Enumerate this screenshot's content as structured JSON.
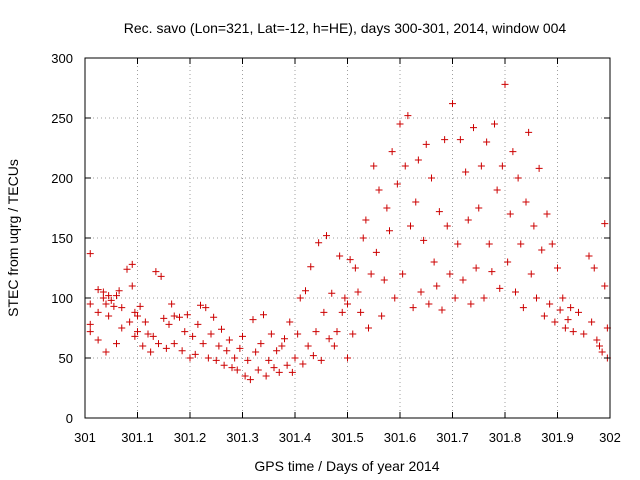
{
  "chart_data": {
    "type": "scatter",
    "title": "Rec. savo (Lon=321, Lat=-12, h=HE), days 300-301, 2014, window 004",
    "xlabel": "GPS time / Days of year 2014",
    "ylabel": "STEC from uqrg / TECUs",
    "xlim": [
      301,
      302
    ],
    "ylim": [
      0,
      300
    ],
    "x_ticks": [
      301,
      301.1,
      301.2,
      301.3,
      301.4,
      301.5,
      301.6,
      301.7,
      301.8,
      301.9,
      302
    ],
    "x_tick_labels": [
      "301",
      "301.1",
      "301.2",
      "301.3",
      "301.4",
      "301.5",
      "301.6",
      "301.7",
      "301.8",
      "301.9",
      "302"
    ],
    "y_ticks": [
      0,
      50,
      100,
      150,
      200,
      250,
      300
    ],
    "y_tick_labels": [
      "0",
      "50",
      "100",
      "150",
      "200",
      "250",
      "300"
    ],
    "grid": true,
    "marker": "plus",
    "color": "#cc0000",
    "points": [
      [
        301.01,
        137
      ],
      [
        301.01,
        95
      ],
      [
        301.01,
        78
      ],
      [
        301.01,
        72
      ],
      [
        301.025,
        107
      ],
      [
        301.025,
        88
      ],
      [
        301.025,
        65
      ],
      [
        301.035,
        105
      ],
      [
        301.035,
        100
      ],
      [
        301.04,
        95
      ],
      [
        301.04,
        55
      ],
      [
        301.045,
        102
      ],
      [
        301.045,
        85
      ],
      [
        301.05,
        98
      ],
      [
        301.055,
        93
      ],
      [
        301.06,
        102
      ],
      [
        301.06,
        62
      ],
      [
        301.065,
        106
      ],
      [
        301.07,
        92
      ],
      [
        301.07,
        75
      ],
      [
        301.08,
        124
      ],
      [
        301.085,
        80
      ],
      [
        301.09,
        128
      ],
      [
        301.09,
        110
      ],
      [
        301.095,
        88
      ],
      [
        301.095,
        68
      ],
      [
        301.1,
        85
      ],
      [
        301.1,
        72
      ],
      [
        301.105,
        93
      ],
      [
        301.11,
        60
      ],
      [
        301.115,
        80
      ],
      [
        301.12,
        70
      ],
      [
        301.125,
        55
      ],
      [
        301.13,
        68
      ],
      [
        301.135,
        122
      ],
      [
        301.14,
        62
      ],
      [
        301.145,
        118
      ],
      [
        301.15,
        83
      ],
      [
        301.155,
        58
      ],
      [
        301.16,
        78
      ],
      [
        301.165,
        95
      ],
      [
        301.17,
        85
      ],
      [
        301.17,
        62
      ],
      [
        301.18,
        84
      ],
      [
        301.185,
        56
      ],
      [
        301.19,
        72
      ],
      [
        301.195,
        86
      ],
      [
        301.2,
        50
      ],
      [
        301.205,
        68
      ],
      [
        301.21,
        53
      ],
      [
        301.215,
        78
      ],
      [
        301.22,
        94
      ],
      [
        301.225,
        62
      ],
      [
        301.23,
        92
      ],
      [
        301.235,
        50
      ],
      [
        301.24,
        70
      ],
      [
        301.245,
        84
      ],
      [
        301.25,
        48
      ],
      [
        301.255,
        60
      ],
      [
        301.26,
        74
      ],
      [
        301.265,
        44
      ],
      [
        301.27,
        56
      ],
      [
        301.275,
        65
      ],
      [
        301.28,
        42
      ],
      [
        301.285,
        50
      ],
      [
        301.29,
        40
      ],
      [
        301.295,
        58
      ],
      [
        301.3,
        68
      ],
      [
        301.305,
        35
      ],
      [
        301.31,
        48
      ],
      [
        301.315,
        32
      ],
      [
        301.32,
        82
      ],
      [
        301.325,
        55
      ],
      [
        301.33,
        40
      ],
      [
        301.335,
        62
      ],
      [
        301.34,
        86
      ],
      [
        301.345,
        35
      ],
      [
        301.35,
        48
      ],
      [
        301.355,
        70
      ],
      [
        301.36,
        42
      ],
      [
        301.365,
        56
      ],
      [
        301.37,
        38
      ],
      [
        301.375,
        60
      ],
      [
        301.38,
        66
      ],
      [
        301.385,
        44
      ],
      [
        301.39,
        80
      ],
      [
        301.395,
        38
      ],
      [
        301.4,
        50
      ],
      [
        301.405,
        70
      ],
      [
        301.41,
        100
      ],
      [
        301.415,
        45
      ],
      [
        301.42,
        106
      ],
      [
        301.425,
        60
      ],
      [
        301.43,
        126
      ],
      [
        301.435,
        52
      ],
      [
        301.44,
        72
      ],
      [
        301.445,
        146
      ],
      [
        301.45,
        48
      ],
      [
        301.455,
        88
      ],
      [
        301.46,
        152
      ],
      [
        301.465,
        66
      ],
      [
        301.47,
        104
      ],
      [
        301.475,
        60
      ],
      [
        301.48,
        72
      ],
      [
        301.485,
        135
      ],
      [
        301.49,
        88
      ],
      [
        301.495,
        100
      ],
      [
        301.5,
        50
      ],
      [
        301.5,
        95
      ],
      [
        301.505,
        132
      ],
      [
        301.51,
        70
      ],
      [
        301.515,
        125
      ],
      [
        301.52,
        105
      ],
      [
        301.525,
        88
      ],
      [
        301.53,
        150
      ],
      [
        301.535,
        165
      ],
      [
        301.54,
        75
      ],
      [
        301.545,
        120
      ],
      [
        301.55,
        210
      ],
      [
        301.555,
        138
      ],
      [
        301.56,
        190
      ],
      [
        301.565,
        85
      ],
      [
        301.57,
        115
      ],
      [
        301.575,
        175
      ],
      [
        301.58,
        156
      ],
      [
        301.585,
        222
      ],
      [
        301.59,
        100
      ],
      [
        301.595,
        195
      ],
      [
        301.6,
        245
      ],
      [
        301.605,
        120
      ],
      [
        301.61,
        210
      ],
      [
        301.615,
        252
      ],
      [
        301.62,
        160
      ],
      [
        301.625,
        92
      ],
      [
        301.63,
        180
      ],
      [
        301.635,
        215
      ],
      [
        301.64,
        105
      ],
      [
        301.645,
        148
      ],
      [
        301.65,
        228
      ],
      [
        301.655,
        95
      ],
      [
        301.66,
        200
      ],
      [
        301.665,
        130
      ],
      [
        301.67,
        110
      ],
      [
        301.675,
        172
      ],
      [
        301.68,
        90
      ],
      [
        301.685,
        232
      ],
      [
        301.69,
        160
      ],
      [
        301.695,
        120
      ],
      [
        301.7,
        262
      ],
      [
        301.705,
        100
      ],
      [
        301.71,
        145
      ],
      [
        301.715,
        232
      ],
      [
        301.72,
        115
      ],
      [
        301.725,
        205
      ],
      [
        301.73,
        165
      ],
      [
        301.735,
        95
      ],
      [
        301.74,
        242
      ],
      [
        301.745,
        125
      ],
      [
        301.75,
        175
      ],
      [
        301.755,
        210
      ],
      [
        301.76,
        100
      ],
      [
        301.765,
        230
      ],
      [
        301.77,
        145
      ],
      [
        301.775,
        122
      ],
      [
        301.78,
        245
      ],
      [
        301.785,
        190
      ],
      [
        301.79,
        108
      ],
      [
        301.795,
        210
      ],
      [
        301.8,
        278
      ],
      [
        301.805,
        130
      ],
      [
        301.81,
        170
      ],
      [
        301.815,
        222
      ],
      [
        301.82,
        105
      ],
      [
        301.825,
        200
      ],
      [
        301.83,
        145
      ],
      [
        301.835,
        92
      ],
      [
        301.84,
        180
      ],
      [
        301.845,
        238
      ],
      [
        301.85,
        120
      ],
      [
        301.855,
        160
      ],
      [
        301.86,
        100
      ],
      [
        301.865,
        208
      ],
      [
        301.87,
        140
      ],
      [
        301.875,
        85
      ],
      [
        301.88,
        170
      ],
      [
        301.885,
        95
      ],
      [
        301.89,
        145
      ],
      [
        301.895,
        80
      ],
      [
        301.9,
        125
      ],
      [
        301.905,
        90
      ],
      [
        301.91,
        100
      ],
      [
        301.915,
        75
      ],
      [
        301.92,
        82
      ],
      [
        301.925,
        92
      ],
      [
        301.93,
        72
      ],
      [
        301.94,
        88
      ],
      [
        301.95,
        70
      ],
      [
        301.96,
        135
      ],
      [
        301.965,
        80
      ],
      [
        301.97,
        125
      ],
      [
        301.975,
        65
      ],
      [
        301.98,
        60
      ],
      [
        301.985,
        55
      ],
      [
        301.99,
        162
      ],
      [
        301.99,
        110
      ],
      [
        301.995,
        75
      ],
      [
        301.995,
        50
      ]
    ]
  }
}
